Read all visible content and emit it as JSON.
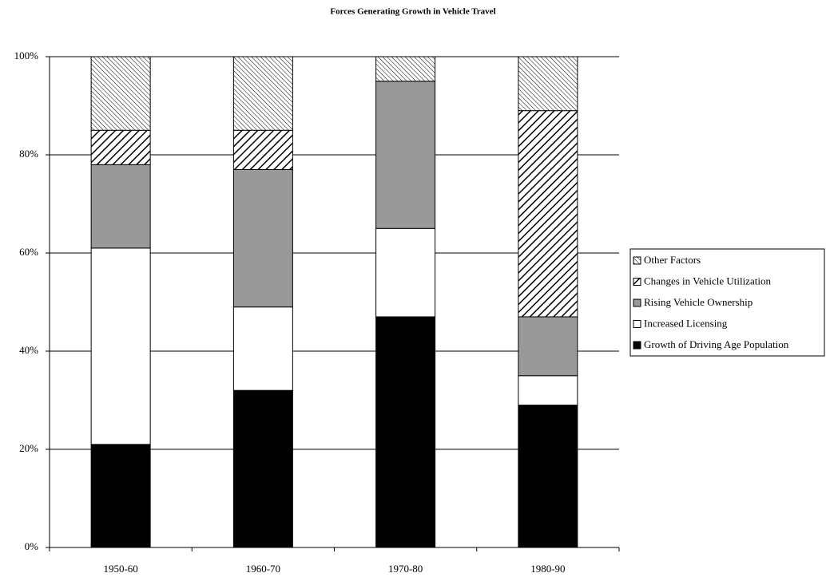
{
  "chart_data": {
    "type": "stacked-bar",
    "title": "Forces Generating Growth in Vehicle Travel",
    "categories": [
      "1950-60",
      "1960-70",
      "1970-80",
      "1980-90"
    ],
    "series": [
      {
        "name": "Growth of Driving Age Population",
        "color": "#000000",
        "values": [
          21,
          32,
          47,
          29
        ]
      },
      {
        "name": "Increased Licensing",
        "color": "#ffffff",
        "values": [
          40,
          17,
          18,
          6
        ]
      },
      {
        "name": "Rising Vehicle Ownership",
        "color": "#999999",
        "values": [
          17,
          28,
          30,
          12
        ]
      },
      {
        "name": "Changes in Vehicle Utilization",
        "color": "#ffffff",
        "pattern": "hatch",
        "values": [
          7,
          8,
          0,
          42
        ]
      },
      {
        "name": "Other Factors",
        "color": "#ffffff",
        "pattern": "fine-hatch",
        "values": [
          15,
          15,
          5,
          11
        ]
      }
    ],
    "ylim": [
      0,
      100
    ],
    "yticks": [
      {
        "value": 0,
        "label": "0%"
      },
      {
        "value": 20,
        "label": "20%"
      },
      {
        "value": 40,
        "label": "40%"
      },
      {
        "value": 60,
        "label": "60%"
      },
      {
        "value": 80,
        "label": "80%"
      },
      {
        "value": 100,
        "label": "100%"
      }
    ],
    "grid": true,
    "legend": "right"
  }
}
